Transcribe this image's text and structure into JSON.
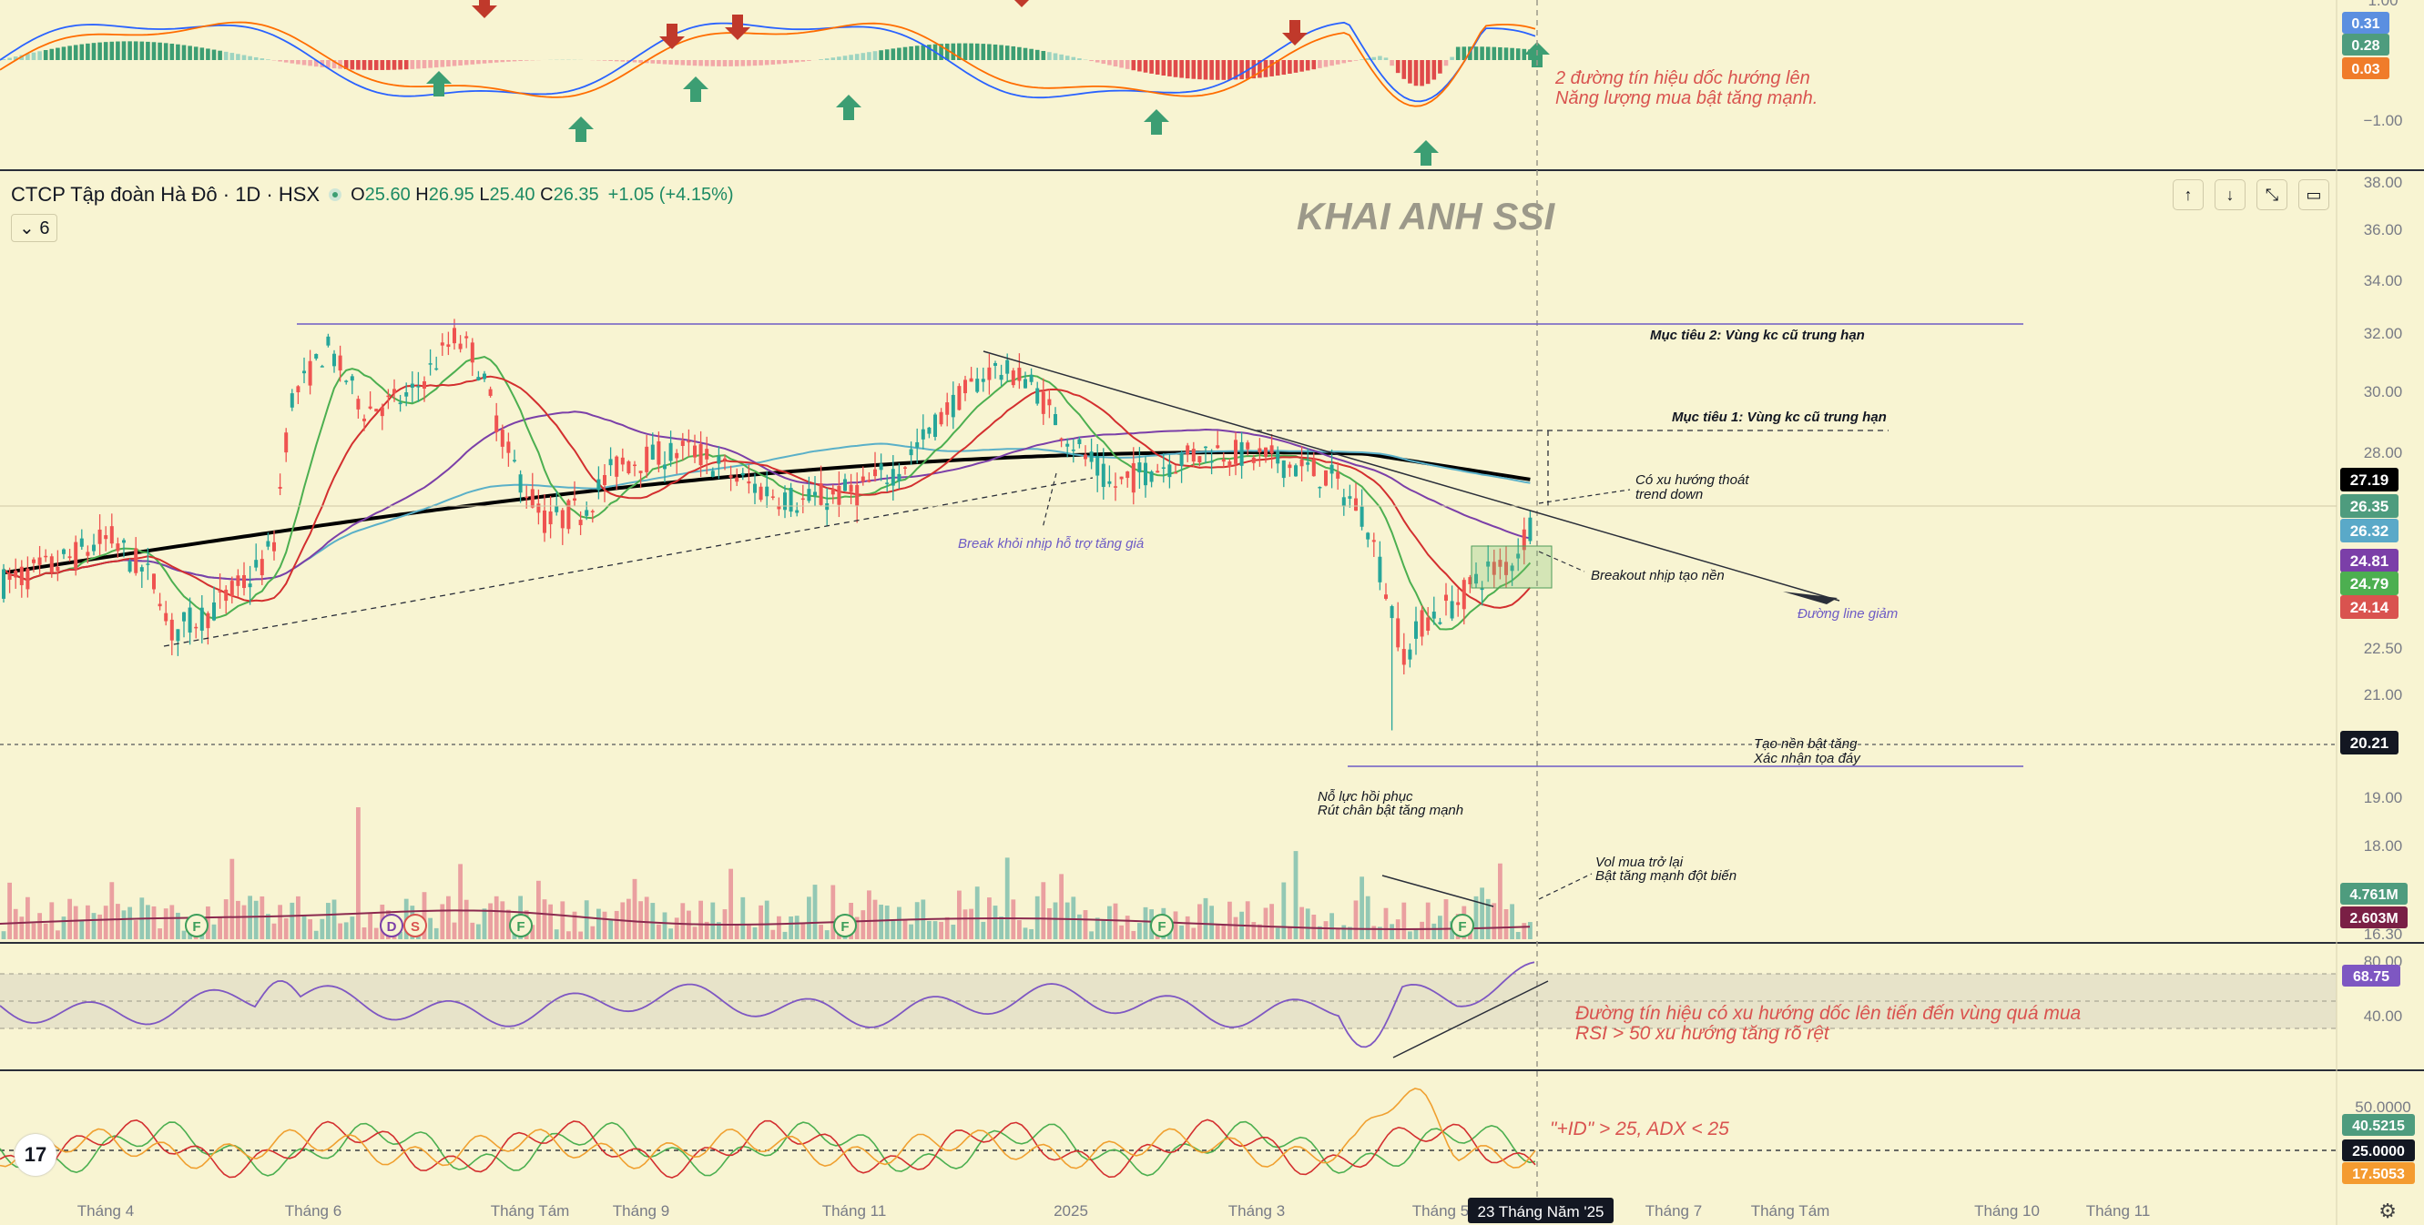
{
  "legend": {
    "title": "CTCP Tập đoàn Hà Đô · 1D · HSX",
    "open_label": "O",
    "open": "25.60",
    "high_label": "H",
    "high": "26.95",
    "low_label": "L",
    "low": "25.40",
    "close_label": "C",
    "close": "26.35",
    "change": "+1.05 (+4.15%)",
    "collapsed_count": "6"
  },
  "watermark": "KHAI ANH SSI",
  "toolbar_icons": [
    "arrow-up-icon",
    "arrow-down-icon",
    "collapse-icon",
    "maximize-icon"
  ],
  "chart_data": [
    {
      "type": "line",
      "pane": "macd",
      "series": [
        {
          "name": "MACD",
          "color": "#2962ff"
        },
        {
          "name": "Signal",
          "color": "#ff6d00"
        },
        {
          "name": "Histogram",
          "color": "#26a69a"
        }
      ],
      "y_ticks": [
        "1.00",
        "−1.00"
      ],
      "last_values": [
        {
          "text": "0.31",
          "color": "#5b8fe0"
        },
        {
          "text": "0.28",
          "color": "#4e9c7e"
        },
        {
          "text": "0.03",
          "color": "#f07c2a"
        }
      ],
      "up_arrows": 7,
      "down_arrows": 5,
      "annotations": [
        "2 đường tín hiệu dốc hướng lên",
        "Năng lượng mua bật tăng mạnh."
      ]
    },
    {
      "type": "candlestick",
      "pane": "price",
      "ylim": [
        16.3,
        38
      ],
      "y_ticks": [
        "38.00",
        "36.00",
        "34.00",
        "32.00",
        "30.00",
        "28.00",
        "22.50",
        "21.00",
        "19.00",
        "18.00",
        "16.30"
      ],
      "x_ticks": [
        "Tháng 4",
        "Tháng 6",
        "Tháng Tám",
        "Tháng 9",
        "Tháng 11",
        "2025",
        "Tháng 3",
        "Tháng 5",
        "23 Tháng Năm '25",
        "Tháng 7",
        "Tháng Tám",
        "Tháng 10",
        "Tháng 11"
      ],
      "ohlc_last": {
        "open": 25.6,
        "high": 26.95,
        "low": 25.4,
        "close": 26.35
      },
      "series": [
        {
          "name": "MA200",
          "color": "#000000",
          "last": 27.19
        },
        {
          "name": "MA100",
          "color": "#5ab0c8",
          "last": 26.32
        },
        {
          "name": "MA50",
          "color": "#7b3fa8",
          "last": 24.81
        },
        {
          "name": "MA10",
          "color": "#4caf50",
          "last": 24.79
        },
        {
          "name": "MA20",
          "color": "#d32f2f",
          "last": 24.14
        }
      ],
      "price_labels": [
        {
          "text": "27.19",
          "bg": "#000000"
        },
        {
          "text": "26.35",
          "bg": "#4e9c7e"
        },
        {
          "text": "26.32",
          "bg": "#5aa9c8"
        },
        {
          "text": "24.81",
          "bg": "#7b3fa8"
        },
        {
          "text": "24.79",
          "bg": "#4caf50"
        },
        {
          "text": "24.14",
          "bg": "#d9534f"
        },
        {
          "text": "20.21",
          "bg": "#131722"
        }
      ],
      "volume_labels": [
        {
          "text": "4.761M",
          "bg": "#4e9c7e"
        },
        {
          "text": "2.603M",
          "bg": "#7a1f45"
        }
      ],
      "annotations": [
        "Mục tiêu 2: Vùng kc cũ trung hạn",
        "Mục tiêu 1: Vùng kc cũ trung hạn",
        "Có xu hướng thoát",
        "trend down",
        "Breakout nhịp tạo nền",
        "Đường line giảm",
        "Break khỏi nhịp hỗ trợ tăng giá",
        "Tạo nền bật tăng",
        "Xác nhận tọa đáy",
        "Nỗ lực hồi phục",
        "Rút chân bật tăng mạnh",
        "Vol mua trở lại",
        "Bật tăng mạnh đột biến"
      ],
      "events": [
        "F",
        "D",
        "S",
        "F",
        "F",
        "F",
        "F"
      ]
    },
    {
      "type": "line",
      "pane": "rsi",
      "y_ticks": [
        "80.00",
        "40.00"
      ],
      "last_value": {
        "text": "68.75",
        "bg": "#7e57c2"
      },
      "annotations": [
        "Đường tín hiệu có xu hướng dốc lên tiến đến vùng quá mua",
        "RSI > 50 xu hướng tăng rõ rệt"
      ]
    },
    {
      "type": "line",
      "pane": "dmi",
      "y_ticks": [
        "50.0000"
      ],
      "last_values": [
        {
          "text": "40.5215",
          "bg": "#4e9c7e"
        },
        {
          "text": "25.0000",
          "bg": "#131722"
        },
        {
          "text": "17.5053",
          "bg": "#f49b30"
        }
      ],
      "annotations": [
        "\"+ID\" > 25, ADX < 25"
      ]
    }
  ]
}
